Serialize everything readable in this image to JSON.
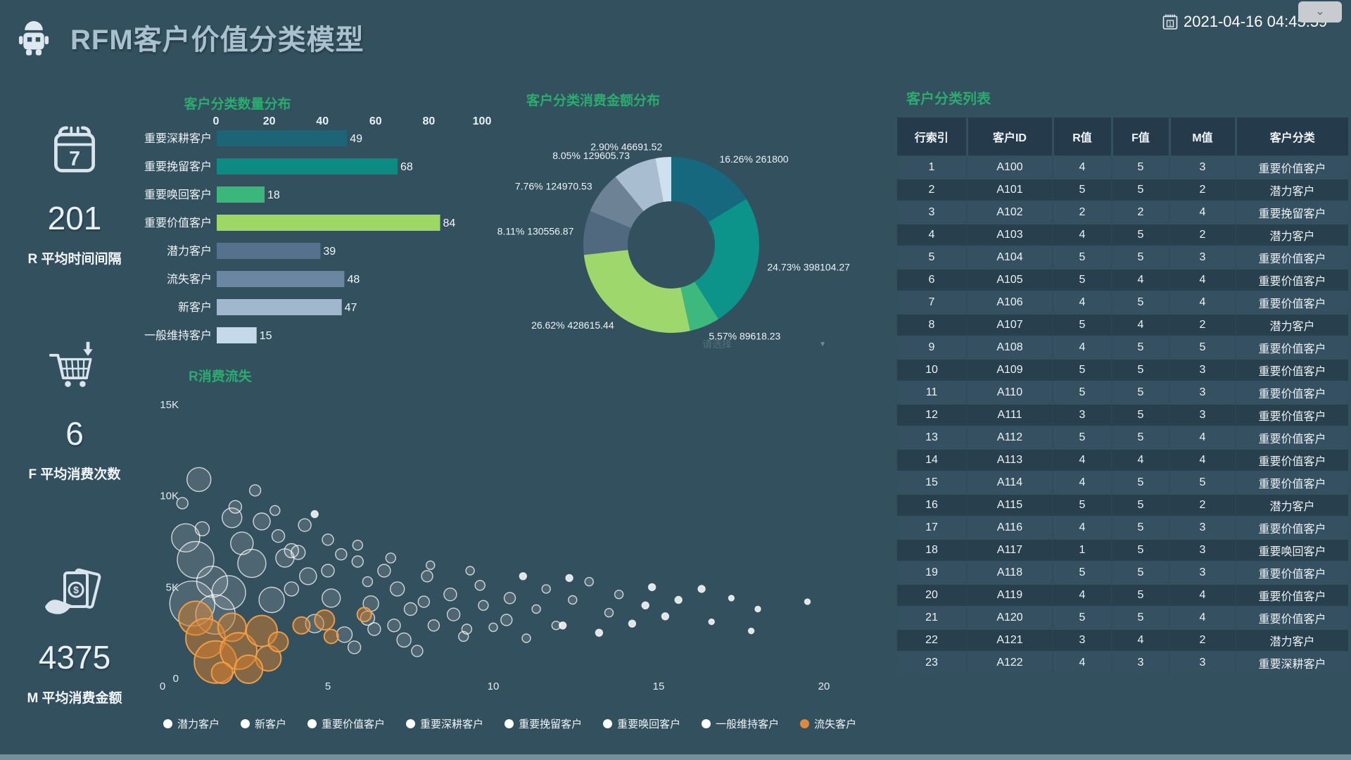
{
  "header": {
    "title": "RFM客户价值分类模型",
    "datetime": "2021-04-16 04:45:59",
    "collapse_glyph": "⌄"
  },
  "icons": {
    "calendar_day": "7",
    "date_badge": "1",
    "dollar": "$",
    "caret": "▼"
  },
  "kpis": [
    {
      "value": "201",
      "label": "R 平均时间间隔"
    },
    {
      "value": "6",
      "label": "F 平均消费次数"
    },
    {
      "value": "4375",
      "label": "M 平均消费金额"
    }
  ],
  "select": {
    "placeholder": "请选择"
  },
  "chart_data": [
    {
      "type": "bar",
      "title": "客户分类数量分布",
      "orientation": "horizontal",
      "categories": [
        "重要深耕客户",
        "重要挽留客户",
        "重要唤回客户",
        "重要价值客户",
        "潜力客户",
        "流失客户",
        "新客户",
        "一般维持客户"
      ],
      "values": [
        49,
        68,
        18,
        84,
        39,
        48,
        47,
        15
      ],
      "colors": [
        "#1c6476",
        "#0d8a82",
        "#3cb77c",
        "#9ed765",
        "#56718c",
        "#6b86a0",
        "#a0b7cd",
        "#c4d9e9"
      ],
      "xlim": [
        0,
        100
      ],
      "xticks": [
        0,
        20,
        40,
        60,
        80,
        100
      ],
      "axis_position": "top"
    },
    {
      "type": "pie",
      "title": "客户分类消费金额分布",
      "inner_radius": 0.5,
      "slices": [
        {
          "pct": 16.26,
          "value": "261800",
          "label": "16.26% 261800",
          "color": "#15687e"
        },
        {
          "pct": 24.73,
          "value": "398104.27",
          "label": "24.73% 398104.27",
          "color": "#0c948b"
        },
        {
          "pct": 5.57,
          "value": "89618.23",
          "label": "5.57% 89618.23",
          "color": "#3eb97e"
        },
        {
          "pct": 26.62,
          "value": "428615.44",
          "label": "26.62% 428615.44",
          "color": "#9ed76b"
        },
        {
          "pct": 8.11,
          "value": "130556.87",
          "label": "8.11% 130556.87",
          "color": "#51697f"
        },
        {
          "pct": 7.76,
          "value": "124970.53",
          "label": "7.76% 124970.53",
          "color": "#6d8295"
        },
        {
          "pct": 8.05,
          "value": "129605.73",
          "label": "8.05% 129605.73",
          "color": "#a9bdd1"
        },
        {
          "pct": 2.9,
          "value": "46691.52",
          "label": "2.90% 46691.52",
          "color": "#cfe0ee"
        }
      ]
    },
    {
      "type": "scatter",
      "title": "R消费流失",
      "xlim": [
        0,
        20
      ],
      "ylim": [
        0,
        15000
      ],
      "xticks": [
        "0",
        "5",
        "10",
        "15",
        "20"
      ],
      "yticks": [
        "0",
        "5K",
        "10K",
        "15K"
      ],
      "legend_position": "bottom",
      "series": [
        {
          "name": "潜力客户",
          "color": "#ffffff",
          "points": [
            [
              1.1,
              10900,
              17
            ],
            [
              0.9,
              4100,
              32
            ],
            [
              1.6,
              3500,
              28
            ],
            [
              2.1,
              8800,
              14
            ],
            [
              2.2,
              9400,
              9
            ],
            [
              3.0,
              8600,
              12
            ],
            [
              1.0,
              6500,
              26
            ],
            [
              1.5,
              5300,
              22
            ],
            [
              4.1,
              6900,
              10
            ],
            [
              5.0,
              5900,
              9
            ],
            [
              6.2,
              5300,
              7
            ],
            [
              3.3,
              4300,
              18
            ]
          ]
        },
        {
          "name": "新客户",
          "color": "#ffffff",
          "points": [
            [
              0.7,
              7700,
              20
            ],
            [
              1.2,
              8200,
              10
            ],
            [
              2.4,
              7400,
              16
            ],
            [
              2.7,
              6300,
              20
            ],
            [
              3.5,
              7800,
              9
            ],
            [
              3.7,
              6600,
              13
            ],
            [
              4.4,
              5600,
              12
            ],
            [
              2.0,
              4700,
              24
            ],
            [
              5.4,
              6800,
              8
            ],
            [
              0.6,
              9600,
              8
            ]
          ]
        },
        {
          "name": "重要价值客户",
          "color": "#ffffff",
          "points": [
            [
              3.9,
              4900,
              10
            ],
            [
              5.1,
              4400,
              13
            ],
            [
              5.9,
              6400,
              8
            ],
            [
              6.7,
              5900,
              9
            ],
            [
              7.1,
              4900,
              10
            ],
            [
              8.0,
              5600,
              8
            ],
            [
              8.7,
              4600,
              9
            ],
            [
              9.6,
              5100,
              7
            ],
            [
              10.5,
              4400,
              8
            ],
            [
              11.6,
              4900,
              6
            ],
            [
              6.3,
              4100,
              11
            ],
            [
              7.5,
              3800,
              9
            ]
          ]
        },
        {
          "name": "重要深耕客户",
          "color": "#ffffff",
          "points": [
            [
              6.2,
              3300,
              10
            ],
            [
              7.0,
              2900,
              9
            ],
            [
              7.9,
              4200,
              8
            ],
            [
              8.8,
              3500,
              9
            ],
            [
              9.7,
              4000,
              7
            ],
            [
              10.4,
              3200,
              8
            ],
            [
              11.3,
              3800,
              6
            ],
            [
              12.4,
              4300,
              6
            ],
            [
              13.5,
              3600,
              6
            ],
            [
              14.6,
              4000,
              5
            ],
            [
              9.2,
              2700,
              7
            ],
            [
              11.9,
              2900,
              6
            ]
          ]
        },
        {
          "name": "重要挽留客户",
          "color": "#ffffff",
          "points": [
            [
              4.6,
              3000,
              13
            ],
            [
              5.5,
              2400,
              11
            ],
            [
              6.4,
              2700,
              9
            ],
            [
              7.3,
              2100,
              10
            ],
            [
              8.2,
              2900,
              8
            ],
            [
              9.1,
              2300,
              7
            ],
            [
              10.0,
              2800,
              6
            ],
            [
              11.0,
              2200,
              6
            ],
            [
              12.1,
              2900,
              5
            ],
            [
              13.2,
              2500,
              5
            ],
            [
              5.8,
              1700,
              9
            ],
            [
              7.7,
              1500,
              8
            ]
          ]
        },
        {
          "name": "重要唤回客户",
          "color": "#ffffff",
          "points": [
            [
              12.9,
              5300,
              6
            ],
            [
              13.8,
              4600,
              6
            ],
            [
              14.8,
              5000,
              5
            ],
            [
              15.6,
              4300,
              5
            ],
            [
              16.3,
              4900,
              5
            ],
            [
              17.2,
              4400,
              4
            ],
            [
              15.2,
              3400,
              5
            ],
            [
              16.6,
              3100,
              4
            ],
            [
              18.0,
              3800,
              4
            ],
            [
              19.5,
              4200,
              4
            ],
            [
              14.2,
              3000,
              5
            ],
            [
              17.8,
              2600,
              4
            ]
          ]
        },
        {
          "name": "一般维持客户",
          "color": "#ffffff",
          "points": [
            [
              2.8,
              10300,
              8
            ],
            [
              3.4,
              9200,
              7
            ],
            [
              4.3,
              8400,
              9
            ],
            [
              5.0,
              7600,
              8
            ],
            [
              5.9,
              7300,
              7
            ],
            [
              6.9,
              6600,
              7
            ],
            [
              8.1,
              6200,
              6
            ],
            [
              9.3,
              5900,
              6
            ],
            [
              10.9,
              5600,
              5
            ],
            [
              12.3,
              5500,
              5
            ],
            [
              4.6,
              9000,
              5
            ],
            [
              3.9,
              7000,
              10
            ]
          ]
        },
        {
          "name": "流失客户",
          "color": "#e0883c",
          "points": [
            [
              1.0,
              3300,
              24
            ],
            [
              1.3,
              2200,
              28
            ],
            [
              1.6,
              900,
              30
            ],
            [
              2.1,
              2800,
              20
            ],
            [
              2.3,
              1500,
              26
            ],
            [
              3.0,
              2600,
              22
            ],
            [
              3.2,
              1100,
              18
            ],
            [
              3.5,
              2000,
              14
            ],
            [
              4.2,
              2900,
              12
            ],
            [
              4.9,
              3200,
              14
            ],
            [
              5.1,
              2300,
              10
            ],
            [
              6.1,
              3500,
              10
            ],
            [
              2.6,
              500,
              20
            ],
            [
              1.8,
              300,
              15
            ]
          ]
        }
      ]
    }
  ],
  "table": {
    "title": "客户分类列表",
    "columns": [
      "行索引",
      "客户ID",
      "R值",
      "F值",
      "M值",
      "客户分类"
    ],
    "rows": [
      [
        "1",
        "A100",
        "4",
        "5",
        "3",
        "重要价值客户"
      ],
      [
        "2",
        "A101",
        "5",
        "5",
        "2",
        "潜力客户"
      ],
      [
        "3",
        "A102",
        "2",
        "2",
        "4",
        "重要挽留客户"
      ],
      [
        "4",
        "A103",
        "4",
        "5",
        "2",
        "潜力客户"
      ],
      [
        "5",
        "A104",
        "5",
        "5",
        "3",
        "重要价值客户"
      ],
      [
        "6",
        "A105",
        "5",
        "4",
        "4",
        "重要价值客户"
      ],
      [
        "7",
        "A106",
        "4",
        "5",
        "4",
        "重要价值客户"
      ],
      [
        "8",
        "A107",
        "5",
        "4",
        "2",
        "潜力客户"
      ],
      [
        "9",
        "A108",
        "4",
        "5",
        "5",
        "重要价值客户"
      ],
      [
        "10",
        "A109",
        "5",
        "5",
        "3",
        "重要价值客户"
      ],
      [
        "11",
        "A110",
        "5",
        "5",
        "3",
        "重要价值客户"
      ],
      [
        "12",
        "A111",
        "3",
        "5",
        "3",
        "重要价值客户"
      ],
      [
        "13",
        "A112",
        "5",
        "5",
        "4",
        "重要价值客户"
      ],
      [
        "14",
        "A113",
        "4",
        "4",
        "4",
        "重要价值客户"
      ],
      [
        "15",
        "A114",
        "4",
        "5",
        "5",
        "重要价值客户"
      ],
      [
        "16",
        "A115",
        "5",
        "5",
        "2",
        "潜力客户"
      ],
      [
        "17",
        "A116",
        "4",
        "5",
        "3",
        "重要价值客户"
      ],
      [
        "18",
        "A117",
        "1",
        "5",
        "3",
        "重要唤回客户"
      ],
      [
        "19",
        "A118",
        "5",
        "5",
        "3",
        "重要价值客户"
      ],
      [
        "20",
        "A119",
        "4",
        "5",
        "4",
        "重要价值客户"
      ],
      [
        "21",
        "A120",
        "5",
        "5",
        "4",
        "重要价值客户"
      ],
      [
        "22",
        "A121",
        "3",
        "4",
        "2",
        "潜力客户"
      ],
      [
        "23",
        "A122",
        "4",
        "3",
        "3",
        "重要深耕客户"
      ]
    ]
  }
}
